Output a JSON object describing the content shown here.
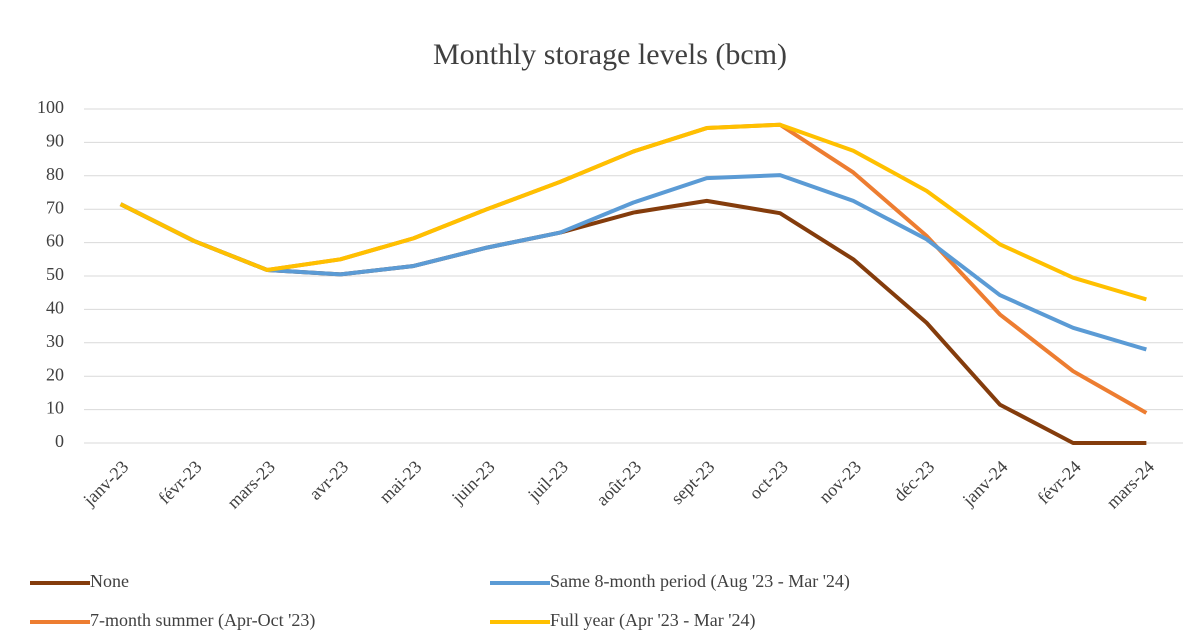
{
  "chart_data": {
    "type": "line",
    "title": "Monthly storage levels (bcm)",
    "categories": [
      "janv-23",
      "févr-23",
      "mars-23",
      "avr-23",
      "mai-23",
      "juin-23",
      "juil-23",
      "août-23",
      "sept-23",
      "oct-23",
      "nov-23",
      "déc-23",
      "janv-24",
      "févr-24",
      "mars-24"
    ],
    "series": [
      {
        "name": "None",
        "color": "#843c0c",
        "values": [
          71.5,
          60.5,
          51.8,
          50.5,
          53,
          58.5,
          63,
          69,
          72.5,
          68.8,
          55,
          36,
          11.5,
          0,
          0
        ]
      },
      {
        "name": "7-month summer (Apr-Oct '23)",
        "color": "#ed7d31",
        "values": [
          71.5,
          60.5,
          51.8,
          55,
          61.3,
          70,
          78.2,
          87.3,
          94.3,
          95.3,
          81,
          62,
          38.5,
          21.5,
          9
        ]
      },
      {
        "name": "Same 8-month period (Aug '23 - Mar '24)",
        "color": "#5b9bd5",
        "values": [
          71.5,
          60.5,
          51.8,
          50.5,
          53,
          58.5,
          63,
          72,
          79.3,
          80.2,
          72.5,
          61,
          44.3,
          34.5,
          28
        ]
      },
      {
        "name": "Full year (Apr '23 - Mar '24)",
        "color": "#ffc000",
        "values": [
          71.5,
          60.5,
          51.8,
          55,
          61.3,
          70,
          78.2,
          87.3,
          94.3,
          95.3,
          87.5,
          75.5,
          59.5,
          49.5,
          43
        ]
      }
    ],
    "ylim": [
      0,
      100
    ],
    "yticks": [
      0,
      10,
      20,
      30,
      40,
      50,
      60,
      70,
      80,
      90,
      100
    ],
    "grid": true,
    "legend": "bottom"
  }
}
